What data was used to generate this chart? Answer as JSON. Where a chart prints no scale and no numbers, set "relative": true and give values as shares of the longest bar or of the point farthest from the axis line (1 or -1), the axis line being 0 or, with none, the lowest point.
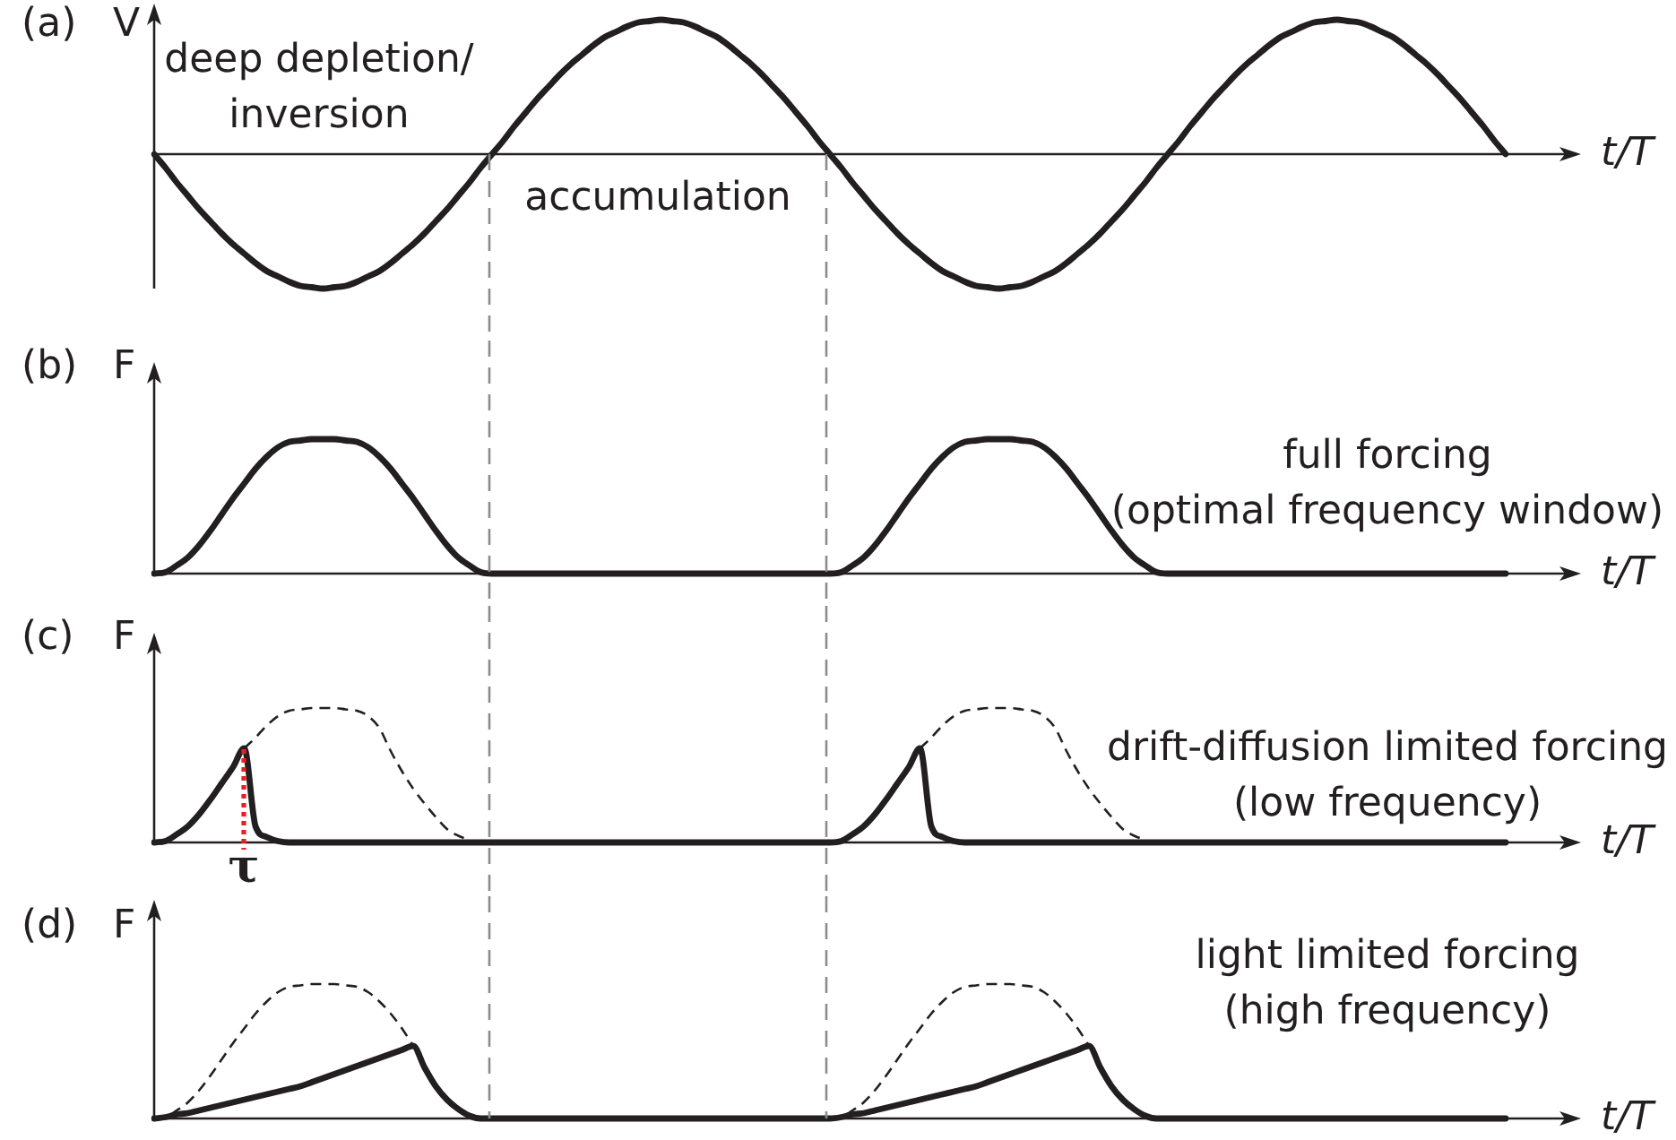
{
  "chart_data": [
    {
      "type": "line",
      "title": "(a)",
      "ylabel": "V",
      "xlabel": "t/T",
      "relative": true,
      "tick_labels": false,
      "annotations": [
        "deep depletion/\ninversion",
        "accumulation"
      ],
      "categories": [
        null,
        null,
        null,
        null,
        null,
        null,
        null,
        null,
        null,
        null,
        null,
        null,
        null,
        null,
        null,
        null,
        null,
        null,
        null,
        null,
        null,
        null,
        null,
        null,
        null,
        null,
        null,
        null,
        null,
        null,
        null,
        null,
        null,
        null,
        null,
        null,
        null,
        null,
        null,
        null,
        null,
        null,
        null,
        null,
        null,
        null,
        null,
        null,
        null,
        null,
        null,
        null,
        null,
        null,
        null,
        null,
        null,
        null,
        null,
        null,
        null,
        null,
        null,
        null,
        null,
        null,
        null,
        null,
        null,
        null,
        null,
        null,
        null,
        null,
        null,
        null,
        null,
        null,
        null,
        null,
        null,
        null,
        null,
        null,
        null,
        null,
        null,
        null,
        null,
        null,
        null,
        null,
        null,
        null,
        null,
        null,
        null,
        null,
        null,
        null,
        null,
        null,
        null,
        null,
        null,
        null,
        null,
        null,
        null,
        null,
        null,
        null,
        null,
        null,
        null,
        null,
        null,
        null,
        null,
        null,
        null
      ],
      "values": [
        0,
        -0.1,
        -0.21,
        -0.31,
        -0.41,
        -0.5,
        -0.59,
        -0.67,
        -0.74,
        -0.81,
        -0.87,
        -0.91,
        -0.95,
        -0.98,
        -0.99,
        -1,
        -0.99,
        -0.98,
        -0.95,
        -0.91,
        -0.87,
        -0.81,
        -0.74,
        -0.67,
        -0.59,
        -0.5,
        -0.41,
        -0.31,
        -0.21,
        -0.1,
        0,
        0.1,
        0.21,
        0.31,
        0.41,
        0.5,
        0.59,
        0.67,
        0.74,
        0.81,
        0.87,
        0.91,
        0.95,
        0.98,
        0.99,
        1,
        0.99,
        0.98,
        0.95,
        0.91,
        0.87,
        0.81,
        0.74,
        0.67,
        0.59,
        0.5,
        0.41,
        0.31,
        0.21,
        0.1,
        0,
        -0.1,
        -0.21,
        -0.31,
        -0.41,
        -0.5,
        -0.59,
        -0.67,
        -0.74,
        -0.81,
        -0.87,
        -0.91,
        -0.95,
        -0.98,
        -0.99,
        -1,
        -0.99,
        -0.98,
        -0.95,
        -0.91,
        -0.87,
        -0.81,
        -0.74,
        -0.67,
        -0.59,
        -0.5,
        -0.41,
        -0.31,
        -0.21,
        -0.1,
        0,
        0.1,
        0.21,
        0.31,
        0.41,
        0.5,
        0.59,
        0.67,
        0.74,
        0.81,
        0.87,
        0.91,
        0.95,
        0.98,
        0.99,
        1,
        0.99,
        0.98,
        0.95,
        0.91,
        0.87,
        0.81,
        0.74,
        0.67,
        0.59,
        0.5,
        0.41,
        0.31,
        0.21,
        0.1,
        0
      ],
      "color": "#231f20"
    },
    {
      "type": "line",
      "title": "(b)",
      "ylabel": "F",
      "xlabel": "t/T",
      "relative": true,
      "tick_labels": false,
      "annotations": [
        "full forcing\n(optimal frequency window)"
      ],
      "categories": [
        null,
        null,
        null,
        null,
        null,
        null,
        null,
        null,
        null,
        null,
        null,
        null,
        null,
        null,
        null,
        null,
        null,
        null,
        null,
        null,
        null,
        null,
        null,
        null,
        null,
        null,
        null,
        null,
        null,
        null,
        null,
        null,
        null,
        null,
        null,
        null,
        null,
        null,
        null,
        null,
        null,
        null,
        null,
        null,
        null,
        null,
        null,
        null,
        null,
        null,
        null,
        null,
        null,
        null,
        null,
        null,
        null,
        null,
        null,
        null,
        null,
        null,
        null,
        null,
        null,
        null,
        null,
        null,
        null,
        null,
        null,
        null,
        null,
        null,
        null,
        null,
        null,
        null,
        null,
        null,
        null,
        null,
        null,
        null,
        null,
        null,
        null,
        null,
        null,
        null,
        null,
        null,
        null,
        null,
        null,
        null,
        null,
        null,
        null,
        null,
        null,
        null,
        null,
        null,
        null,
        null,
        null,
        null,
        null,
        null,
        null,
        null,
        null,
        null,
        null,
        null,
        null,
        null,
        null,
        null,
        null
      ],
      "values": [
        0,
        0.01,
        0.06,
        0.12,
        0.21,
        0.32,
        0.44,
        0.56,
        0.67,
        0.78,
        0.87,
        0.94,
        0.98,
        0.99,
        1,
        1,
        1,
        0.99,
        0.98,
        0.94,
        0.87,
        0.78,
        0.67,
        0.56,
        0.44,
        0.32,
        0.21,
        0.12,
        0.06,
        0.01,
        0,
        0,
        0,
        0,
        0,
        0,
        0,
        0,
        0,
        0,
        0,
        0,
        0,
        0,
        0,
        0,
        0,
        0,
        0,
        0,
        0,
        0,
        0,
        0,
        0,
        0,
        0,
        0,
        0,
        0,
        0,
        0.01,
        0.06,
        0.12,
        0.21,
        0.32,
        0.44,
        0.56,
        0.67,
        0.78,
        0.87,
        0.94,
        0.98,
        0.99,
        1,
        1,
        1,
        0.99,
        0.98,
        0.94,
        0.87,
        0.78,
        0.67,
        0.56,
        0.44,
        0.32,
        0.21,
        0.12,
        0.06,
        0.01,
        0,
        0,
        0,
        0,
        0,
        0,
        0,
        0,
        0,
        0,
        0,
        0,
        0,
        0,
        0,
        0,
        0,
        0,
        0,
        0,
        0,
        0,
        0,
        0,
        0,
        0,
        0,
        0,
        0,
        0,
        0
      ],
      "color": "#231f20"
    },
    {
      "type": "line",
      "title": "(c)",
      "ylabel": "F",
      "xlabel": "t/T",
      "relative": true,
      "tick_labels": false,
      "annotations": [
        "drift-diffusion limited forcing\n(low frequency)",
        "τ"
      ],
      "categories": [
        null,
        null,
        null,
        null,
        null,
        null,
        null,
        null,
        null,
        null,
        null,
        null,
        null,
        null,
        null,
        null,
        null,
        null,
        null,
        null,
        null,
        null,
        null,
        null,
        null,
        null,
        null,
        null,
        null,
        null,
        null,
        null,
        null,
        null,
        null,
        null,
        null,
        null,
        null,
        null,
        null,
        null,
        null,
        null,
        null,
        null,
        null,
        null,
        null,
        null,
        null,
        null,
        null,
        null,
        null,
        null,
        null,
        null,
        null,
        null,
        null,
        null,
        null,
        null,
        null,
        null,
        null,
        null,
        null,
        null,
        null,
        null,
        null,
        null,
        null,
        null,
        null,
        null,
        null,
        null,
        null,
        null,
        null,
        null,
        null,
        null,
        null,
        null,
        null,
        null,
        null,
        null,
        null,
        null,
        null,
        null,
        null,
        null,
        null,
        null,
        null,
        null,
        null,
        null,
        null,
        null,
        null,
        null,
        null,
        null,
        null,
        null,
        null,
        null,
        null,
        null,
        null,
        null,
        null,
        null,
        null
      ],
      "series": [
        {
          "color": "#231f20",
          "line_style": "dashed",
          "values": [
            null,
            null,
            null,
            null,
            null,
            null,
            null,
            null,
            0.7,
            0.78,
            0.87,
            0.94,
            0.98,
            0.99,
            1,
            1,
            1,
            0.99,
            0.98,
            0.94,
            0.85,
            0.68,
            0.53,
            0.4,
            0.29,
            0.19,
            0.1,
            0.05,
            0.02,
            null,
            null,
            null,
            null,
            null,
            null,
            null,
            null,
            null,
            null,
            null,
            null,
            null,
            null,
            null,
            null,
            null,
            null,
            null,
            null,
            null,
            null,
            null,
            null,
            null,
            null,
            null,
            null,
            null,
            null,
            null,
            null,
            null,
            null,
            null,
            null,
            null,
            null,
            null,
            0.7,
            0.78,
            0.87,
            0.94,
            0.98,
            0.99,
            1,
            1,
            1,
            0.99,
            0.98,
            0.94,
            0.85,
            0.68,
            0.53,
            0.4,
            0.29,
            0.19,
            0.1,
            0.05,
            0.02,
            null,
            null,
            null,
            null,
            null,
            null,
            null,
            null,
            null,
            null,
            null,
            null,
            null,
            null,
            null,
            null,
            null,
            null,
            null,
            null,
            null,
            null,
            null,
            null,
            null,
            null,
            null,
            null,
            null,
            null,
            null,
            null
          ]
        },
        {
          "color": "#231f20",
          "values": [
            0,
            0.01,
            0.06,
            0.12,
            0.21,
            0.32,
            0.44,
            0.56,
            0.7,
            0.12,
            0.04,
            0.01,
            0,
            0,
            0,
            0,
            0,
            0,
            0,
            0,
            0,
            0,
            0,
            0,
            0,
            0,
            0,
            0,
            0,
            0,
            0,
            0,
            0,
            0,
            0,
            0,
            0,
            0,
            0,
            0,
            0,
            0,
            0,
            0,
            0,
            0,
            0,
            0,
            0,
            0,
            0,
            0,
            0,
            0,
            0,
            0,
            0,
            0,
            0,
            0,
            0,
            0.01,
            0.06,
            0.12,
            0.21,
            0.32,
            0.44,
            0.56,
            0.7,
            0.12,
            0.04,
            0.01,
            0,
            0,
            0,
            0,
            0,
            0,
            0,
            0,
            0,
            0,
            0,
            0,
            0,
            0,
            0,
            0,
            0,
            0,
            0,
            0,
            0,
            0,
            0,
            0,
            0,
            0,
            0,
            0,
            0,
            0,
            0,
            0,
            0,
            0,
            0,
            0,
            0,
            0,
            0,
            0,
            0,
            0,
            0,
            0,
            0,
            0,
            0,
            0,
            0
          ]
        }
      ]
    },
    {
      "type": "line",
      "title": "(d)",
      "ylabel": "F",
      "xlabel": "t/T",
      "relative": true,
      "tick_labels": false,
      "annotations": [
        "light limited forcing\n(high frequency)"
      ],
      "categories": [
        null,
        null,
        null,
        null,
        null,
        null,
        null,
        null,
        null,
        null,
        null,
        null,
        null,
        null,
        null,
        null,
        null,
        null,
        null,
        null,
        null,
        null,
        null,
        null,
        null,
        null,
        null,
        null,
        null,
        null,
        null,
        null,
        null,
        null,
        null,
        null,
        null,
        null,
        null,
        null,
        null,
        null,
        null,
        null,
        null,
        null,
        null,
        null,
        null,
        null,
        null,
        null,
        null,
        null,
        null,
        null,
        null,
        null,
        null,
        null,
        null,
        null,
        null,
        null,
        null,
        null,
        null,
        null,
        null,
        null,
        null,
        null,
        null,
        null,
        null,
        null,
        null,
        null,
        null,
        null,
        null,
        null,
        null,
        null,
        null,
        null,
        null,
        null,
        null,
        null,
        null,
        null,
        null,
        null,
        null,
        null,
        null,
        null,
        null,
        null,
        null,
        null,
        null,
        null,
        null,
        null,
        null,
        null,
        null,
        null,
        null,
        null,
        null,
        null,
        null,
        null,
        null,
        null,
        null,
        null,
        null
      ],
      "series": [
        {
          "color": "#231f20",
          "line_style": "dashed",
          "values": [
            0,
            0.01,
            0.06,
            0.12,
            0.21,
            0.32,
            0.44,
            0.56,
            0.67,
            0.78,
            0.87,
            0.94,
            0.98,
            0.99,
            1,
            1,
            1,
            0.99,
            0.98,
            0.94,
            0.87,
            0.78,
            0.67,
            0.54,
            null,
            null,
            null,
            null,
            null,
            null,
            null,
            null,
            null,
            null,
            null,
            null,
            null,
            null,
            null,
            null,
            null,
            null,
            null,
            null,
            null,
            null,
            null,
            null,
            null,
            null,
            null,
            null,
            null,
            null,
            null,
            null,
            null,
            null,
            null,
            null,
            0,
            0.01,
            0.06,
            0.12,
            0.21,
            0.32,
            0.44,
            0.56,
            0.67,
            0.78,
            0.87,
            0.94,
            0.98,
            0.99,
            1,
            1,
            1,
            0.99,
            0.98,
            0.94,
            0.87,
            0.78,
            0.67,
            0.54,
            null,
            null,
            null,
            null,
            null,
            null,
            null,
            null,
            null,
            null,
            null,
            null,
            null,
            null,
            null,
            null,
            null,
            null,
            null,
            null,
            null,
            null,
            null,
            null,
            null,
            null,
            null,
            null,
            null,
            null,
            null,
            null,
            null,
            null,
            null,
            null,
            null
          ]
        },
        {
          "color": "#231f20",
          "values": [
            0,
            0.01,
            0.03,
            0.04,
            0.06,
            0.08,
            0.1,
            0.12,
            0.14,
            0.16,
            0.18,
            0.2,
            0.22,
            0.24,
            0.27,
            0.3,
            0.33,
            0.36,
            0.39,
            0.42,
            0.45,
            0.48,
            0.51,
            0.54,
            0.38,
            0.24,
            0.14,
            0.07,
            0.02,
            0,
            0,
            0,
            0,
            0,
            0,
            0,
            0,
            0,
            0,
            0,
            0,
            0,
            0,
            0,
            0,
            0,
            0,
            0,
            0,
            0,
            0,
            0,
            0,
            0,
            0,
            0,
            0,
            0,
            0,
            0,
            0,
            0.01,
            0.03,
            0.04,
            0.06,
            0.08,
            0.1,
            0.12,
            0.14,
            0.16,
            0.18,
            0.2,
            0.22,
            0.24,
            0.27,
            0.3,
            0.33,
            0.36,
            0.39,
            0.42,
            0.45,
            0.48,
            0.51,
            0.54,
            0.38,
            0.24,
            0.14,
            0.07,
            0.02,
            0,
            0,
            0,
            0,
            0,
            0,
            0,
            0,
            0,
            0,
            0,
            0,
            0,
            0,
            0,
            0,
            0,
            0,
            0,
            0,
            0,
            0,
            0,
            0,
            0,
            0,
            0,
            0,
            0,
            0,
            0,
            0
          ]
        }
      ]
    }
  ]
}
